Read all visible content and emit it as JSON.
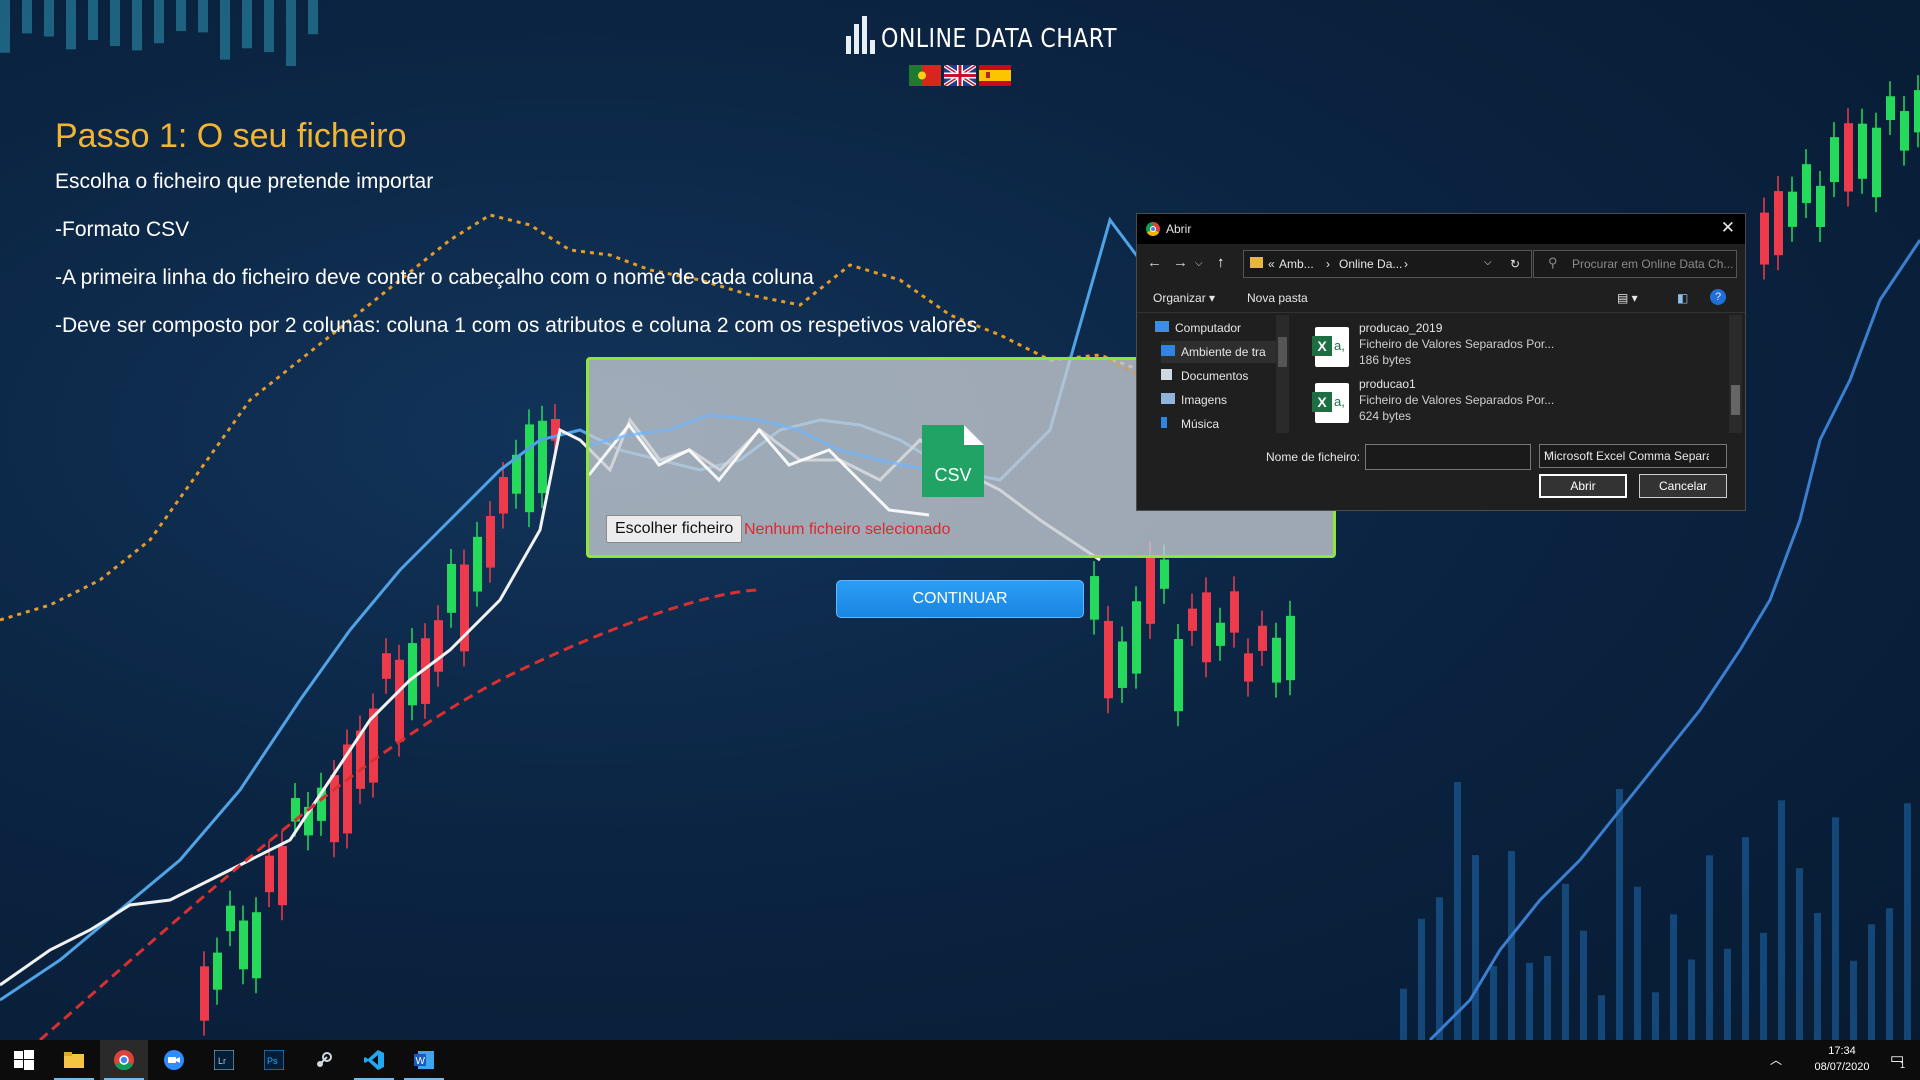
{
  "header": {
    "brand_text": "ONLINE DATA CHART",
    "flags": [
      "portuguese-flag",
      "uk-flag",
      "spanish-flag"
    ]
  },
  "step": {
    "title": "Passo 1: O seu ficheiro",
    "lines": [
      "Escolha o ficheiro que pretende importar",
      "-Formato CSV",
      "-A primeira linha do ficheiro deve conter o cabeçalho com o nome de cada coluna",
      "-Deve ser composto por 2 colunas: coluna 1 com os atributos e coluna 2 com os respetivos valores"
    ]
  },
  "upload": {
    "icon_label": "CSV",
    "choose_button": "Escolher ficheiro",
    "status": "Nenhum ficheiro selecionado"
  },
  "continue_label": "CONTINUAR",
  "dialog": {
    "title": "Abrir",
    "path": {
      "prefix": "«",
      "crumb1": "Amb...",
      "crumb2": "Online Da..."
    },
    "search_placeholder": "Procurar em Online Data Ch...",
    "commands": {
      "organize": "Organizar",
      "new_folder": "Nova pasta"
    },
    "tree": [
      {
        "label": "Computador",
        "icon": "computer-icon"
      },
      {
        "label": "Ambiente de tra",
        "icon": "desktop-icon"
      },
      {
        "label": "Documentos",
        "icon": "documents-icon"
      },
      {
        "label": "Imagens",
        "icon": "pictures-icon"
      },
      {
        "label": "Música",
        "icon": "music-icon"
      }
    ],
    "files": [
      {
        "name": "producao_2019",
        "desc": "Ficheiro de Valores Separados Por...",
        "size": "186 bytes"
      },
      {
        "name": "producao1",
        "desc": "Ficheiro de Valores Separados Por...",
        "size": "624 bytes"
      }
    ],
    "filename_label": "Nome de ficheiro:",
    "filename_value": "",
    "filetype": "Microsoft Excel Comma Separa",
    "open_button": "Abrir",
    "cancel_button": "Cancelar"
  },
  "taskbar": {
    "apps": [
      "start",
      "file-explorer",
      "chrome",
      "zoom",
      "lightroom",
      "photoshop",
      "steam",
      "vscode",
      "word"
    ],
    "time": "17:34",
    "date": "08/07/2020",
    "notifications": "1"
  }
}
